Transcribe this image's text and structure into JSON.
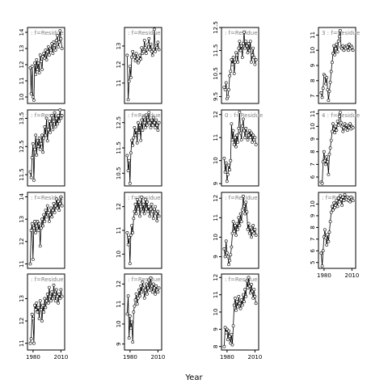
{
  "chart_data": {
    "type": "line",
    "title": "",
    "xlabel": "Year",
    "ylabel": "",
    "grid": false,
    "line_color": "#000000",
    "point_style": "open-circle",
    "xlim": [
      1974,
      2014
    ],
    "x_ticks": [
      1980,
      2010
    ],
    "panels": [
      {
        "strip": "f=Residue",
        "strip_prefix": ":",
        "row": 0,
        "col": 0,
        "ylim": [
          9.6,
          14.3
        ],
        "y_ticks": [
          10,
          11,
          12,
          13,
          14
        ],
        "show_x_ticks": false,
        "values": [
          11.8,
          10.2,
          11.9,
          10.0,
          9.8,
          12.1,
          11.4,
          12.3,
          11.7,
          12.1,
          11.5,
          12.6,
          12.2,
          11.7,
          12.5,
          12.7,
          12.4,
          12.9,
          12.3,
          12.8,
          13.1,
          12.6,
          13.0,
          12.9,
          13.3,
          12.7,
          13.4,
          13.2,
          12.9,
          13.5,
          13.8,
          13.1,
          13.4,
          14.1,
          13.6,
          13.0
        ]
      },
      {
        "strip": "f=Residue",
        "strip_prefix": ":",
        "row": 0,
        "col": 1,
        "ylim": [
          9.9,
          14.0
        ],
        "y_ticks": [
          11,
          12,
          13
        ],
        "show_x_ticks": false,
        "values": [
          12.5,
          10.1,
          11.1,
          11.9,
          11.3,
          12.4,
          12.7,
          12.5,
          12.4,
          12.2,
          12.6,
          12.3,
          12.1,
          12.2,
          12.5,
          12.3,
          12.9,
          12.6,
          12.7,
          13.3,
          12.9,
          12.6,
          12.8,
          13.1,
          13.4,
          12.8,
          13.1,
          12.7,
          12.5,
          12.8,
          13.9,
          12.7,
          13.0,
          12.9,
          13.2,
          12.8
        ]
      },
      {
        "strip": "f=Residue",
        "strip_prefix": ":",
        "row": 0,
        "col": 2,
        "ylim": [
          9.2,
          12.5
        ],
        "y_ticks": [
          9.5,
          10.5,
          11.5,
          12.5
        ],
        "show_x_ticks": false,
        "values": [
          9.9,
          9.8,
          10.1,
          9.4,
          9.5,
          9.8,
          10.4,
          10.6,
          11.1,
          10.9,
          11.2,
          10.5,
          11.0,
          11.4,
          11.3,
          11.0,
          11.6,
          11.9,
          11.5,
          11.7,
          11.2,
          11.8,
          12.3,
          11.6,
          11.9,
          11.7,
          11.4,
          11.8,
          11.5,
          11.9,
          11.0,
          11.3,
          11.6,
          11.2,
          10.9,
          11.1
        ]
      },
      {
        "strip": "f=Residue",
        "strip_prefix": "3 :",
        "row": 0,
        "col": 3,
        "ylim": [
          6.5,
          11.5
        ],
        "y_ticks": [
          7,
          8,
          9,
          10,
          11
        ],
        "show_x_ticks": false,
        "values": [
          7.2,
          6.9,
          7.5,
          8.4,
          8.3,
          7.8,
          8.2,
          7.4,
          6.7,
          7.3,
          7.9,
          8.6,
          9.2,
          9.8,
          10.3,
          9.7,
          10.1,
          10.4,
          9.9,
          10.6,
          10.9,
          11.3,
          10.2,
          10.1,
          10.3,
          10.0,
          10.2,
          10.1,
          10.3,
          10.2,
          10.0,
          10.4,
          10.1,
          10.3,
          10.2,
          10.0
        ]
      },
      {
        "strip": "f=Residue",
        "strip_prefix": ":",
        "row": 1,
        "col": 0,
        "ylim": [
          11.1,
          13.8
        ],
        "y_ticks": [
          11.5,
          12.5,
          13.5
        ],
        "show_x_ticks": false,
        "values": [
          11.6,
          11.4,
          12.1,
          12.6,
          11.3,
          12.4,
          12.9,
          12.2,
          12.7,
          12.5,
          12.8,
          12.4,
          12.6,
          12.9,
          12.3,
          12.8,
          13.2,
          12.9,
          13.5,
          12.7,
          13.1,
          13.4,
          13.0,
          13.3,
          13.6,
          13.1,
          13.4,
          13.7,
          13.2,
          13.5,
          13.3,
          13.6,
          13.4,
          13.8,
          13.5,
          13.6
        ]
      },
      {
        "strip": "f=Residue",
        "strip_prefix": ":",
        "row": 1,
        "col": 1,
        "ylim": [
          10.0,
          13.0
        ],
        "y_ticks": [
          10.5,
          11.5,
          12.5
        ],
        "show_x_ticks": false,
        "values": [
          11.2,
          10.6,
          11.0,
          10.1,
          11.3,
          11.8,
          11.6,
          11.9,
          12.3,
          12.0,
          12.2,
          11.7,
          12.5,
          12.1,
          12.4,
          11.8,
          12.6,
          12.2,
          12.7,
          12.5,
          12.3,
          12.8,
          12.4,
          12.6,
          12.9,
          12.5,
          12.3,
          12.6,
          12.4,
          12.7,
          12.5,
          12.3,
          12.6,
          12.4,
          12.2,
          12.5
        ]
      },
      {
        "strip": "f=Residue",
        "strip_prefix": "0 :",
        "row": 1,
        "col": 2,
        "ylim": [
          8.9,
          12.2
        ],
        "y_ticks": [
          9.0,
          10.0,
          11.0,
          12.0
        ],
        "show_x_ticks": false,
        "values": [
          10.1,
          9.5,
          9.9,
          9.1,
          9.4,
          9.8,
          9.6,
          10.0,
          11.6,
          10.9,
          11.3,
          10.7,
          11.0,
          10.6,
          11.1,
          10.8,
          11.4,
          12.1,
          11.2,
          10.9,
          11.5,
          11.8,
          11.3,
          11.0,
          11.4,
          11.2,
          10.9,
          11.1,
          11.3,
          11.0,
          11.2,
          10.8,
          11.1,
          10.9,
          11.0,
          10.7
        ]
      },
      {
        "strip": "f=Residue",
        "strip_prefix": "4 :",
        "row": 1,
        "col": 3,
        "ylim": [
          5.3,
          11.3
        ],
        "y_ticks": [
          6,
          7,
          8,
          9,
          10,
          11
        ],
        "show_x_ticks": false,
        "values": [
          5.6,
          5.5,
          7.2,
          8.0,
          7.3,
          7.0,
          7.6,
          7.2,
          6.2,
          7.8,
          8.3,
          8.9,
          9.6,
          10.2,
          9.8,
          9.5,
          10.0,
          9.7,
          10.4,
          10.1,
          10.8,
          11.1,
          10.3,
          10.0,
          9.6,
          9.9,
          10.2,
          9.8,
          10.1,
          9.7,
          10.0,
          9.9,
          10.2,
          9.8,
          10.0,
          9.9
        ]
      },
      {
        "strip": "f=Residue",
        "strip_prefix": ":",
        "row": 2,
        "col": 0,
        "ylim": [
          10.8,
          14.2
        ],
        "y_ticks": [
          11.0,
          12.0,
          13.0,
          14.0
        ],
        "show_x_ticks": false,
        "values": [
          11.0,
          12.5,
          12.8,
          11.2,
          12.6,
          12.9,
          12.4,
          12.7,
          12.9,
          12.5,
          12.8,
          11.8,
          12.6,
          13.0,
          12.7,
          13.2,
          12.9,
          13.4,
          13.1,
          13.6,
          13.3,
          12.9,
          13.2,
          13.5,
          13.1,
          13.4,
          13.7,
          13.3,
          13.6,
          13.9,
          13.5,
          13.8,
          13.4,
          13.7,
          14.0,
          13.6
        ]
      },
      {
        "strip": "f=Residue",
        "strip_prefix": ":",
        "row": 2,
        "col": 1,
        "ylim": [
          9.4,
          12.6
        ],
        "y_ticks": [
          10.0,
          11.0,
          12.0
        ],
        "show_x_ticks": false,
        "values": [
          10.9,
          10.4,
          10.7,
          9.6,
          10.8,
          11.2,
          10.9,
          11.5,
          11.8,
          12.1,
          11.7,
          12.3,
          11.9,
          12.2,
          11.6,
          12.0,
          12.4,
          11.8,
          12.1,
          11.7,
          12.3,
          11.9,
          12.2,
          11.8,
          12.0,
          11.6,
          11.9,
          12.1,
          11.8,
          11.5,
          11.9,
          12.0,
          11.7,
          11.4,
          11.8,
          11.6
        ]
      },
      {
        "strip": "f=Residue",
        "strip_prefix": ":",
        "row": 2,
        "col": 2,
        "ylim": [
          8.4,
          12.3
        ],
        "y_ticks": [
          9.0,
          10.0,
          11.0,
          12.0
        ],
        "show_x_ticks": false,
        "values": [
          9.4,
          9.0,
          9.8,
          9.2,
          9.0,
          8.6,
          8.8,
          9.1,
          9.5,
          10.2,
          10.8,
          10.3,
          10.6,
          10.1,
          10.7,
          10.4,
          11.0,
          10.6,
          11.2,
          10.8,
          11.4,
          12.1,
          11.6,
          11.2,
          11.8,
          11.3,
          10.4,
          10.7,
          10.2,
          10.5,
          10.0,
          10.3,
          10.6,
          10.2,
          10.4,
          10.1
        ]
      },
      {
        "strip": "f=Residue",
        "strip_prefix": ":",
        "row": 2,
        "col": 3,
        "ylim": [
          4.5,
          11.0
        ],
        "y_ticks": [
          5,
          6,
          7,
          8,
          9,
          10
        ],
        "show_x_ticks": true,
        "values": [
          5.8,
          4.7,
          6.0,
          7.2,
          7.8,
          7.1,
          6.5,
          7.4,
          6.8,
          7.6,
          8.5,
          9.3,
          9.8,
          9.5,
          10.1,
          9.7,
          9.9,
          10.3,
          9.8,
          10.5,
          10.2,
          10.7,
          10.4,
          9.9,
          10.6,
          10.3,
          10.8,
          10.5,
          10.4,
          10.6,
          10.3,
          10.5,
          10.2,
          10.6,
          10.4,
          10.3
        ]
      },
      {
        "strip": "f=Residue",
        "strip_prefix": ":",
        "row": 3,
        "col": 0,
        "ylim": [
          10.7,
          14.1
        ],
        "y_ticks": [
          11.0,
          12.0,
          13.0
        ],
        "show_x_ticks": true,
        "values": [
          11.0,
          11.2,
          12.3,
          12.1,
          11.0,
          12.7,
          12.5,
          12.8,
          12.4,
          12.6,
          12.1,
          12.9,
          12.5,
          12.0,
          12.7,
          12.4,
          13.0,
          12.6,
          12.9,
          13.2,
          12.8,
          13.5,
          13.1,
          12.9,
          13.3,
          13.0,
          13.6,
          13.2,
          12.9,
          13.4,
          13.1,
          12.8,
          13.2,
          13.0,
          13.4,
          13.1
        ]
      },
      {
        "strip": "f=Residue",
        "strip_prefix": ":",
        "row": 3,
        "col": 1,
        "ylim": [
          8.7,
          12.5
        ],
        "y_ticks": [
          9.0,
          10.0,
          11.0,
          12.0
        ],
        "show_x_ticks": true,
        "values": [
          10.5,
          11.4,
          9.3,
          10.4,
          9.8,
          10.1,
          9.1,
          10.6,
          10.9,
          11.2,
          11.5,
          11.0,
          11.3,
          11.7,
          11.4,
          11.9,
          11.6,
          12.1,
          11.8,
          11.3,
          11.7,
          12.0,
          11.5,
          11.8,
          12.2,
          11.7,
          12.3,
          11.9,
          11.6,
          12.0,
          11.8,
          11.5,
          11.9,
          11.7,
          11.6,
          11.8
        ]
      },
      {
        "strip": "f=Residue",
        "strip_prefix": ":",
        "row": 3,
        "col": 2,
        "ylim": [
          7.8,
          12.2
        ],
        "y_ticks": [
          8.0,
          9.0,
          10.0,
          11.0,
          12.0
        ],
        "show_x_ticks": true,
        "values": [
          8.0,
          9.1,
          8.8,
          9.0,
          8.4,
          8.9,
          8.6,
          8.2,
          8.7,
          8.1,
          9.2,
          10.4,
          10.8,
          10.1,
          10.6,
          10.3,
          10.9,
          10.5,
          10.2,
          10.7,
          10.4,
          11.0,
          10.6,
          11.3,
          10.9,
          11.8,
          11.4,
          12.0,
          11.5,
          11.1,
          11.6,
          11.2,
          10.8,
          11.3,
          10.9,
          10.5
        ]
      }
    ]
  }
}
